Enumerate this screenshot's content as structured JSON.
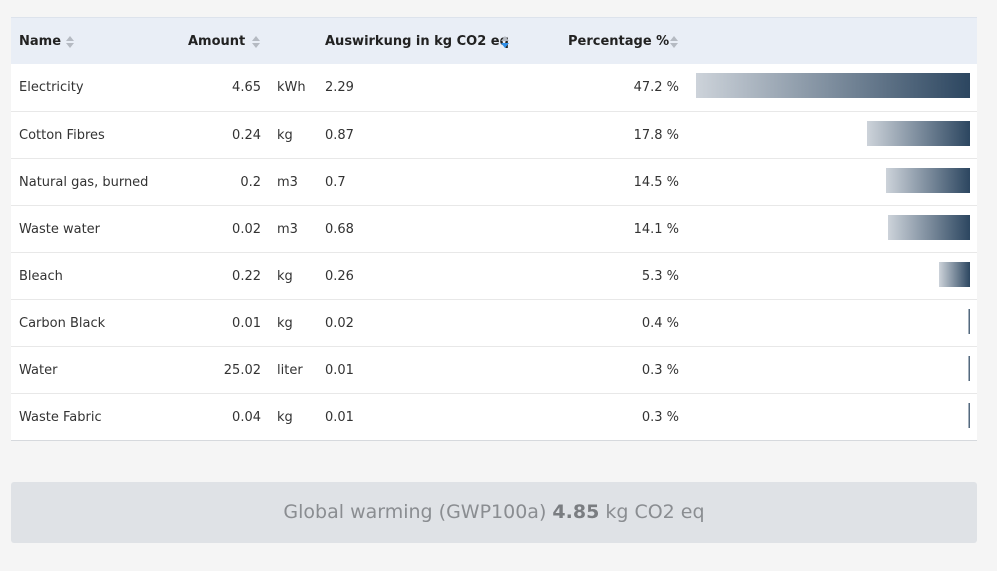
{
  "header": {
    "name": "Name",
    "amount": "Amount",
    "impact": "Auswirkung in kg CO2 eq",
    "percentage": "Percentage %"
  },
  "table": {
    "rows": [
      {
        "name": "Electricity",
        "amount": 4.65,
        "unit": "kWh",
        "impact": 2.29,
        "percentage": 47.2,
        "percentage_label": "47.2 %"
      },
      {
        "name": "Cotton Fibres",
        "amount": 0.24,
        "unit": "kg",
        "impact": 0.87,
        "percentage": 17.8,
        "percentage_label": "17.8 %"
      },
      {
        "name": "Natural gas, burned",
        "amount": 0.2,
        "unit": "m3",
        "impact": 0.7,
        "percentage": 14.5,
        "percentage_label": "14.5 %"
      },
      {
        "name": "Waste water",
        "amount": 0.02,
        "unit": "m3",
        "impact": 0.68,
        "percentage": 14.1,
        "percentage_label": "14.1 %"
      },
      {
        "name": "Bleach",
        "amount": 0.22,
        "unit": "kg",
        "impact": 0.26,
        "percentage": 5.3,
        "percentage_label": "5.3 %"
      },
      {
        "name": "Carbon Black",
        "amount": 0.01,
        "unit": "kg",
        "impact": 0.02,
        "percentage": 0.4,
        "percentage_label": "0.4 %"
      },
      {
        "name": "Water",
        "amount": 25.02,
        "unit": "liter",
        "impact": 0.01,
        "percentage": 0.3,
        "percentage_label": "0.3 %"
      },
      {
        "name": "Waste Fabric",
        "amount": 0.04,
        "unit": "kg",
        "impact": 0.01,
        "percentage": 0.3,
        "percentage_label": "0.3 %"
      }
    ]
  },
  "summary": {
    "label": "Global warming (GWP100a)",
    "value": 4.85,
    "unit": "kg CO2 eq"
  }
}
